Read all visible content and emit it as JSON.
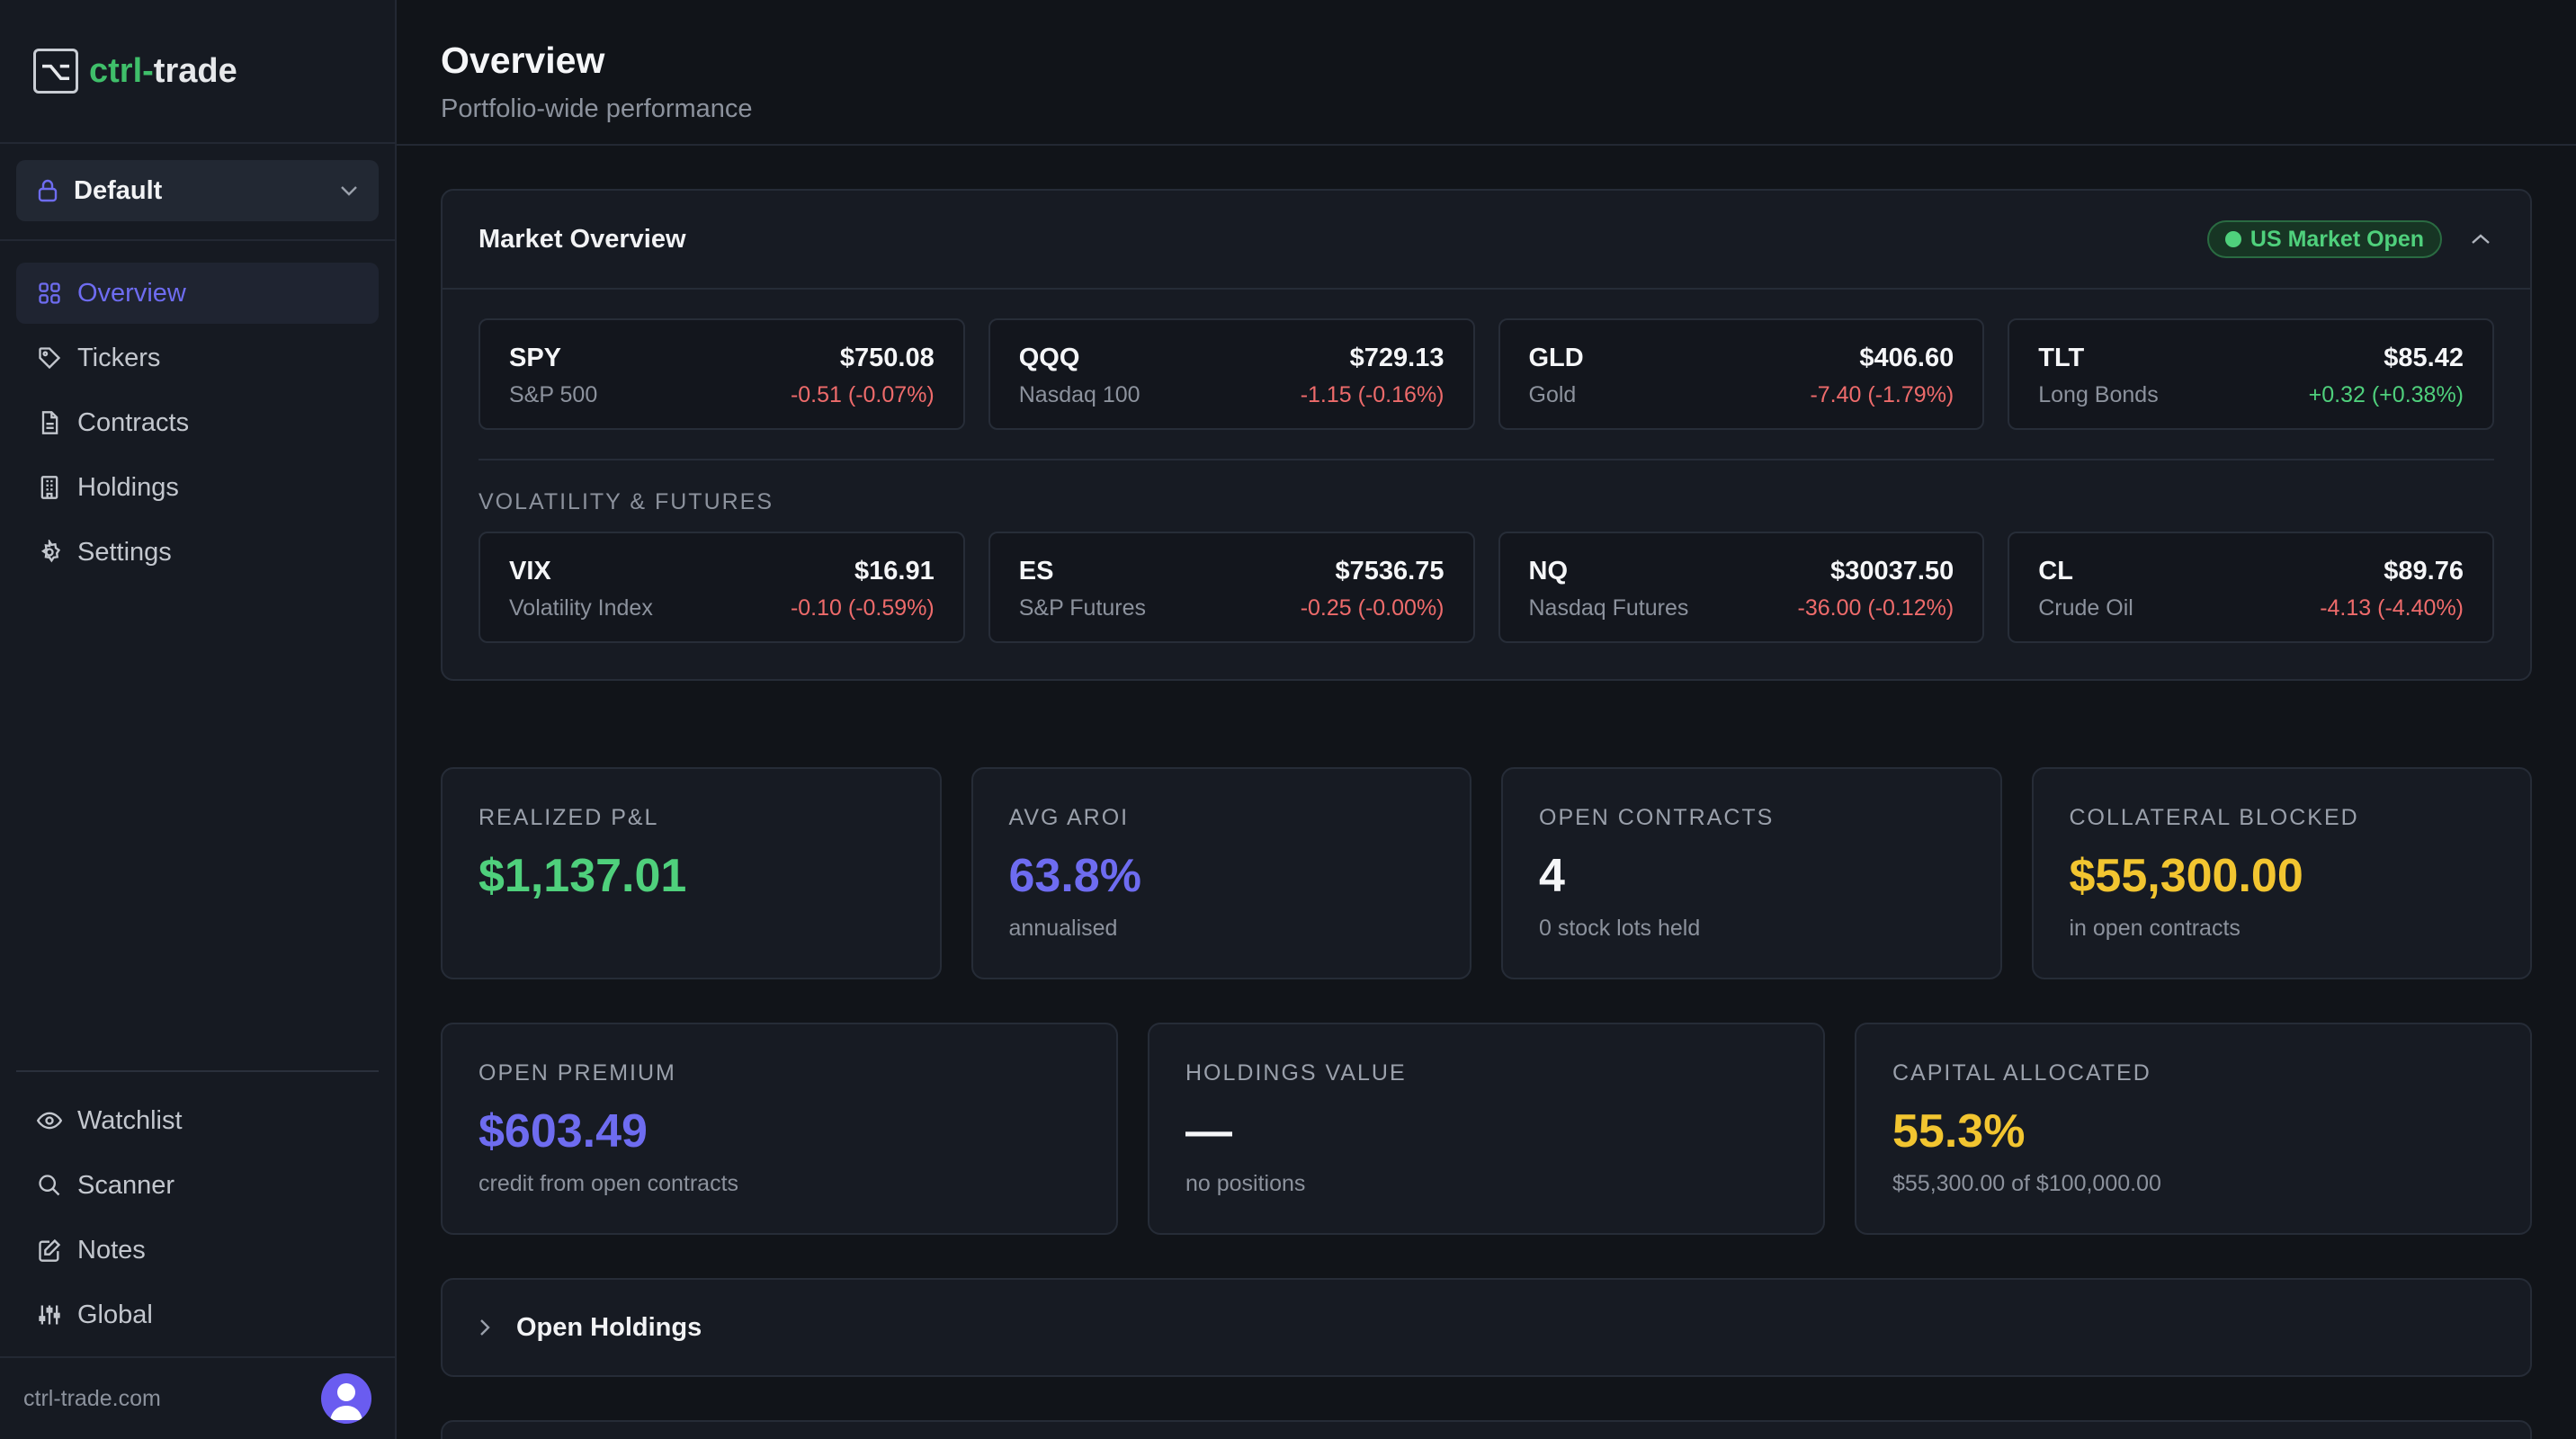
{
  "brand": {
    "logo_glyph": "⌥",
    "name_part1": "ctrl",
    "dash": "-",
    "name_part2": "trade"
  },
  "profile": {
    "name": "Default"
  },
  "nav": {
    "primary": [
      {
        "label": "Overview",
        "icon": "grid-icon",
        "active": true
      },
      {
        "label": "Tickers",
        "icon": "tag-icon"
      },
      {
        "label": "Contracts",
        "icon": "document-icon"
      },
      {
        "label": "Holdings",
        "icon": "building-icon"
      },
      {
        "label": "Settings",
        "icon": "gear-icon"
      }
    ],
    "secondary": [
      {
        "label": "Watchlist",
        "icon": "eye-icon"
      },
      {
        "label": "Scanner",
        "icon": "search-icon"
      },
      {
        "label": "Notes",
        "icon": "edit-icon"
      },
      {
        "label": "Global",
        "icon": "sliders-icon"
      }
    ]
  },
  "footer": {
    "site": "ctrl-trade.com"
  },
  "page": {
    "title": "Overview",
    "subtitle": "Portfolio-wide performance"
  },
  "market": {
    "title": "Market Overview",
    "status": "US Market Open",
    "indices": [
      {
        "symbol": "SPY",
        "name": "S&P 500",
        "price": "$750.08",
        "change": "-0.51 (-0.07%)",
        "direction": "down"
      },
      {
        "symbol": "QQQ",
        "name": "Nasdaq 100",
        "price": "$729.13",
        "change": "-1.15 (-0.16%)",
        "direction": "down"
      },
      {
        "symbol": "GLD",
        "name": "Gold",
        "price": "$406.60",
        "change": "-7.40 (-1.79%)",
        "direction": "down"
      },
      {
        "symbol": "TLT",
        "name": "Long Bonds",
        "price": "$85.42",
        "change": "+0.32 (+0.38%)",
        "direction": "up"
      }
    ],
    "vol_label": "VOLATILITY & FUTURES",
    "futures": [
      {
        "symbol": "VIX",
        "name": "Volatility Index",
        "price": "$16.91",
        "change": "-0.10 (-0.59%)",
        "direction": "down"
      },
      {
        "symbol": "ES",
        "name": "S&P Futures",
        "price": "$7536.75",
        "change": "-0.25 (-0.00%)",
        "direction": "down"
      },
      {
        "symbol": "NQ",
        "name": "Nasdaq Futures",
        "price": "$30037.50",
        "change": "-36.00 (-0.12%)",
        "direction": "down"
      },
      {
        "symbol": "CL",
        "name": "Crude Oil",
        "price": "$89.76",
        "change": "-4.13 (-4.40%)",
        "direction": "down"
      }
    ]
  },
  "stats_row1": [
    {
      "label": "REALIZED P&L",
      "value": "$1,137.01",
      "sub": "",
      "color": "green"
    },
    {
      "label": "AVG AROI",
      "value": "63.8%",
      "sub": "annualised",
      "color": "indigo"
    },
    {
      "label": "OPEN CONTRACTS",
      "value": "4",
      "sub": "0 stock lots held",
      "color": "white"
    },
    {
      "label": "COLLATERAL BLOCKED",
      "value": "$55,300.00",
      "sub": "in open contracts",
      "color": "yellow"
    }
  ],
  "stats_row2": [
    {
      "label": "OPEN PREMIUM",
      "value": "$603.49",
      "sub": "credit from open contracts",
      "color": "indigo"
    },
    {
      "label": "HOLDINGS VALUE",
      "value": "—",
      "sub": "no positions",
      "color": "white"
    },
    {
      "label": "CAPITAL ALLOCATED",
      "value": "55.3%",
      "sub": "$55,300.00 of $100,000.00",
      "color": "yellow"
    }
  ],
  "holdings_section": {
    "label": "Open Holdings"
  },
  "colors": {
    "accent": "#6e6cf0",
    "positive": "#4fd07c",
    "negative": "#ee6b6b",
    "warning": "#f2c530"
  }
}
